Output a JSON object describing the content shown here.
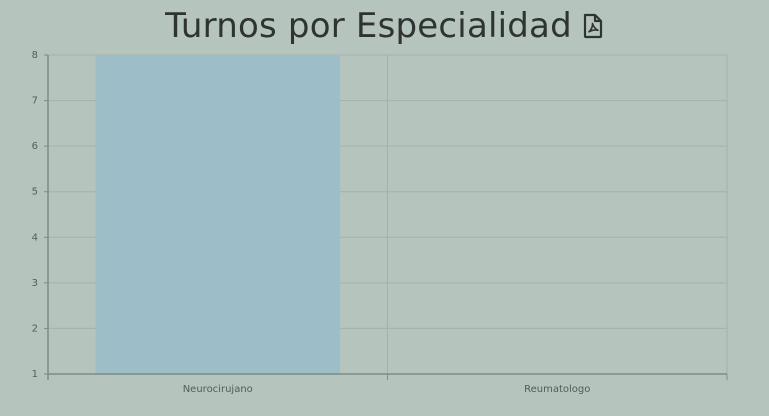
{
  "header": {
    "title": "Turnos por Especialidad",
    "pdf_icon": "file-pdf-icon"
  },
  "chart_data": {
    "type": "bar",
    "title": "Turnos por Especialidad",
    "xlabel": "",
    "ylabel": "",
    "categories": [
      "Neurocirujano",
      "Reumatologo"
    ],
    "values": [
      8,
      1
    ],
    "ylim": [
      1,
      8
    ],
    "yticks": [
      "1",
      "2",
      "3",
      "4",
      "5",
      "6",
      "7",
      "8"
    ],
    "grid": true,
    "legend": "none",
    "colors": {
      "bar": "#9dbdc9",
      "grid": "#a4b2ab",
      "axis": "#7f8c86"
    }
  }
}
